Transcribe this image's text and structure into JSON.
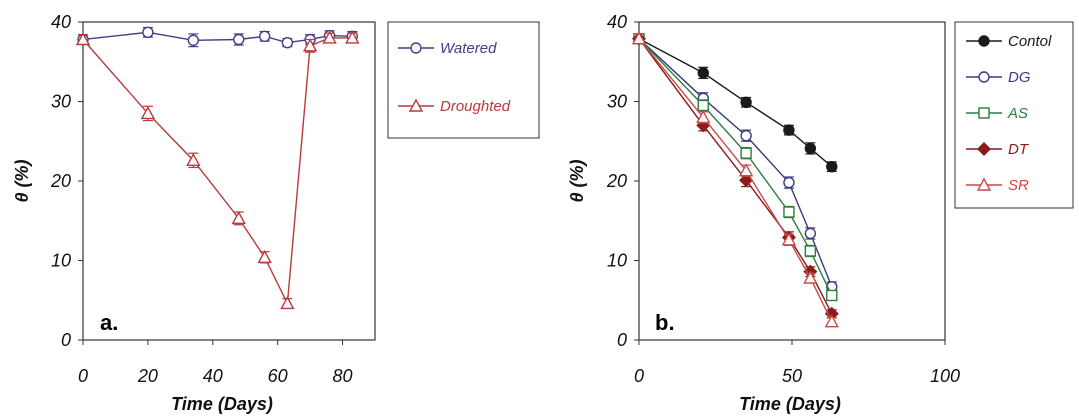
{
  "chart_data": [
    {
      "type": "line",
      "panel_label": "a.",
      "xlabel": "Time (Days)",
      "ylabel": "θ (%)",
      "xlim": [
        0,
        90
      ],
      "ylim": [
        0,
        40
      ],
      "xticks": [
        "0",
        "20",
        "40",
        "60",
        "80"
      ],
      "yticks": [
        "0",
        "10",
        "20",
        "30",
        "40"
      ],
      "grid": false,
      "legend_position": "right",
      "series": [
        {
          "name": "Watered",
          "color": "#4a3a8a",
          "marker": "circle-open",
          "x": [
            0,
            20,
            34,
            48,
            56,
            63,
            70,
            76,
            83
          ],
          "y": [
            37.8,
            38.7,
            37.7,
            37.8,
            38.2,
            37.4,
            37.8,
            38.3,
            38.2
          ],
          "err": [
            0.6,
            0.6,
            0.8,
            0.7,
            0.6,
            0.5,
            0.6,
            0.6,
            0.6
          ]
        },
        {
          "name": "Droughted",
          "color": "#b83a3a",
          "marker": "triangle-open",
          "x": [
            0,
            20,
            34,
            48,
            56,
            63,
            70,
            76,
            83
          ],
          "y": [
            37.8,
            28.5,
            22.6,
            15.3,
            10.4,
            4.6,
            37.0,
            38.0,
            38.0
          ],
          "err": [
            0.6,
            0.9,
            0.9,
            0.8,
            0.7,
            0.6,
            0.8,
            0.6,
            0.6
          ]
        }
      ]
    },
    {
      "type": "line",
      "panel_label": "b.",
      "xlabel": "Time (Days)",
      "ylabel": "θ (%)",
      "xlim": [
        0,
        100
      ],
      "ylim": [
        0,
        40
      ],
      "xticks": [
        "0",
        "50",
        "100"
      ],
      "yticks": [
        "0",
        "10",
        "20",
        "30",
        "40"
      ],
      "grid": false,
      "legend_position": "right",
      "series": [
        {
          "name": "Contol",
          "color": "#1a1a1a",
          "marker": "circle-filled",
          "x": [
            0,
            21,
            35,
            49,
            56,
            63
          ],
          "y": [
            37.9,
            33.6,
            29.9,
            26.4,
            24.1,
            21.8
          ],
          "err": [
            0.6,
            0.7,
            0.6,
            0.6,
            0.7,
            0.6
          ]
        },
        {
          "name": "DG",
          "color": "#3a3a80",
          "marker": "circle-open",
          "x": [
            0,
            21,
            35,
            49,
            56,
            63
          ],
          "y": [
            37.9,
            30.4,
            25.7,
            19.8,
            13.4,
            6.7
          ],
          "err": [
            0.6,
            0.7,
            0.7,
            0.7,
            0.7,
            0.6
          ]
        },
        {
          "name": "AS",
          "color": "#2e7d3e",
          "marker": "square-open",
          "x": [
            0,
            21,
            35,
            49,
            56,
            63
          ],
          "y": [
            37.9,
            29.5,
            23.5,
            16.1,
            11.2,
            5.6
          ],
          "err": [
            0.6,
            0.7,
            0.7,
            0.7,
            0.7,
            0.6
          ]
        },
        {
          "name": "DT",
          "color": "#8b1a1a",
          "marker": "diamond-filled",
          "x": [
            0,
            21,
            35,
            49,
            56,
            63
          ],
          "y": [
            37.9,
            27.0,
            20.1,
            12.9,
            8.6,
            3.3
          ],
          "err": [
            0.6,
            0.7,
            0.8,
            0.7,
            0.6,
            0.5
          ]
        },
        {
          "name": "SR",
          "color": "#c84a4a",
          "marker": "triangle-open",
          "x": [
            0,
            21,
            35,
            49,
            56,
            63
          ],
          "y": [
            37.9,
            28.0,
            21.3,
            12.6,
            7.8,
            2.3
          ],
          "err": [
            0.6,
            0.7,
            0.7,
            0.7,
            0.6,
            0.5
          ]
        }
      ]
    }
  ]
}
